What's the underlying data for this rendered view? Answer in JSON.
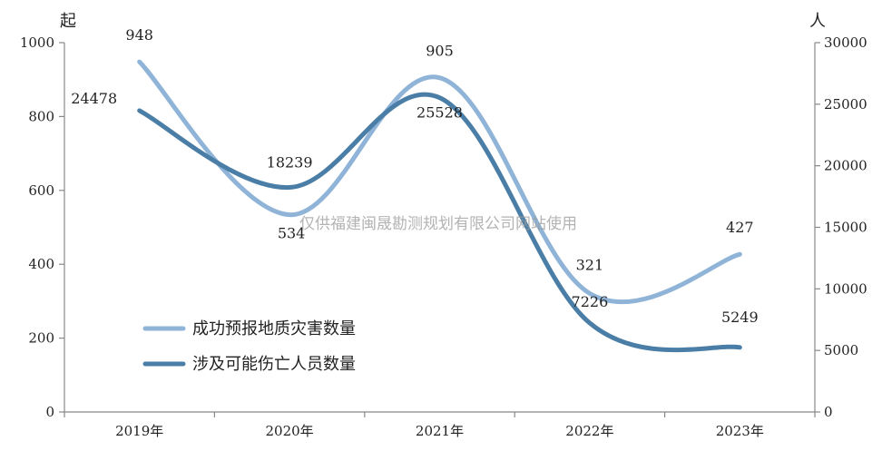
{
  "chart_data": {
    "type": "line",
    "categories": [
      "2019年",
      "2020年",
      "2021年",
      "2022年",
      "2023年"
    ],
    "left_axis": {
      "unit": "起",
      "ylim": [
        0,
        1000
      ],
      "ticks": [
        0,
        200,
        400,
        600,
        800,
        1000
      ]
    },
    "right_axis": {
      "unit": "人",
      "ylim": [
        0,
        30000
      ],
      "ticks": [
        0,
        5000,
        10000,
        15000,
        20000,
        25000,
        30000
      ]
    },
    "series": [
      {
        "name": "成功预报地质灾害数量",
        "axis": "left",
        "color": "#8fb4d8",
        "values": [
          948,
          534,
          905,
          321,
          427
        ],
        "labels": [
          "948",
          "534",
          "905",
          "321",
          "427"
        ]
      },
      {
        "name": "涉及可能伤亡人员数量",
        "axis": "right",
        "color": "#4a7ea6",
        "values": [
          24478,
          18239,
          25528,
          7226,
          5249
        ],
        "labels": [
          "24478",
          "18239",
          "25528",
          "7226",
          "5249"
        ]
      }
    ],
    "legend_position": "bottom-left",
    "grid": false
  },
  "watermark": "仅供福建闽晟勘测规划有限公司网站使用"
}
